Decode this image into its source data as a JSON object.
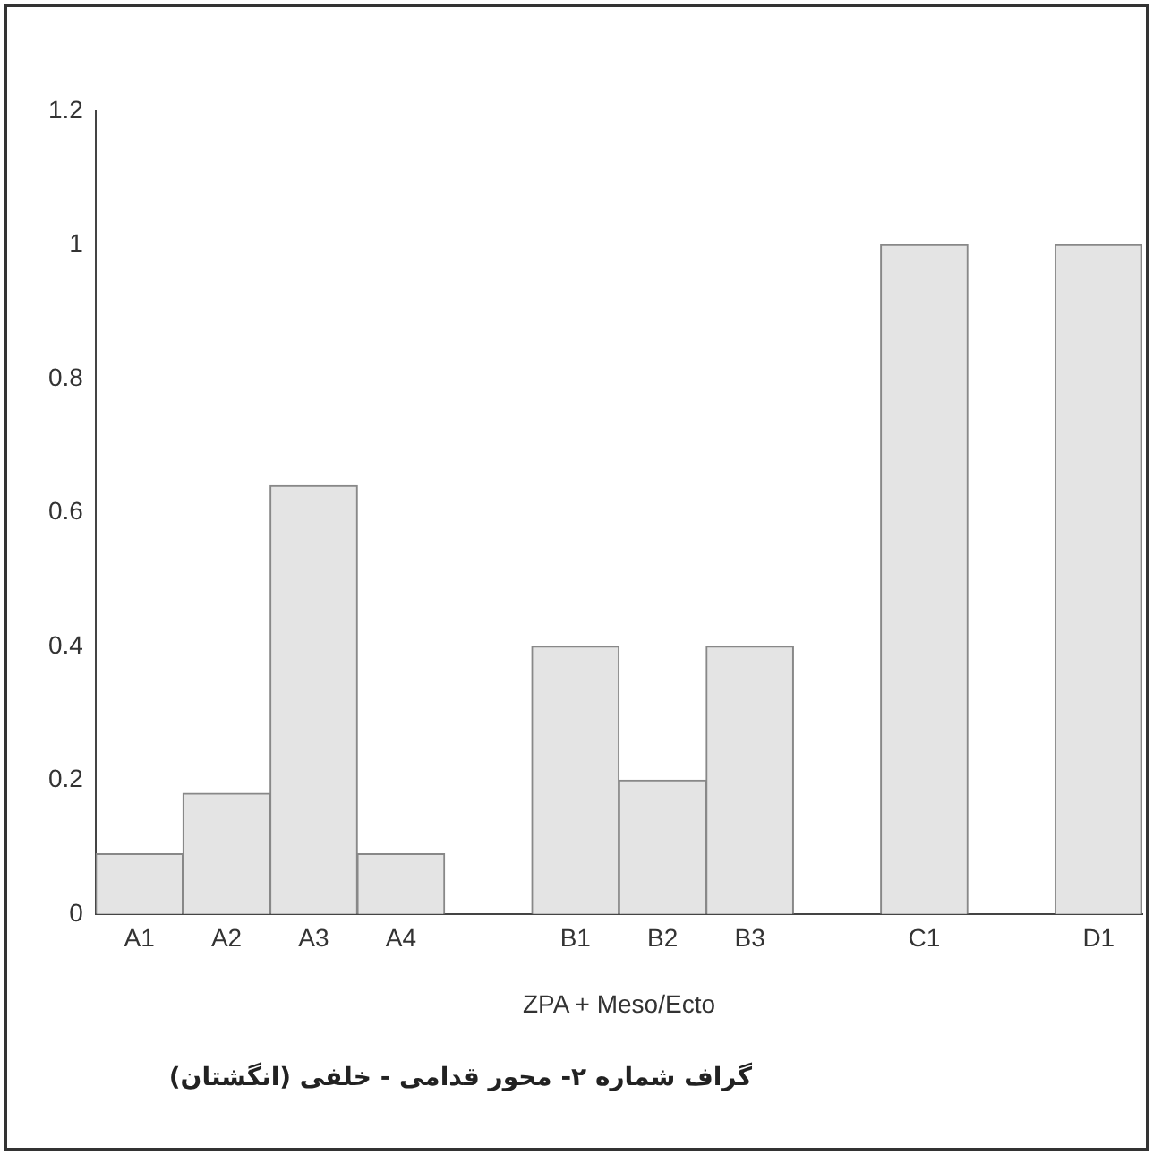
{
  "chart_data": {
    "type": "bar",
    "categories": [
      "A1",
      "A2",
      "A3",
      "A4",
      null,
      "B1",
      "B2",
      "B3",
      null,
      "C1",
      null,
      "D1"
    ],
    "values": [
      0.09,
      0.18,
      0.64,
      0.09,
      null,
      0.4,
      0.2,
      0.4,
      null,
      1,
      null,
      1
    ],
    "color": "#e4e4e4",
    "xlabel": "ZPA + Meso/Ecto",
    "ylim": [
      0,
      1.2
    ],
    "yticks": [
      0,
      0.2,
      0.4,
      0.6,
      0.8,
      1,
      1.2
    ],
    "grid": false,
    "legend": false,
    "annotations": [
      "گراف شماره ۲- محور قدامی - خلفی (انگشتان)"
    ]
  }
}
